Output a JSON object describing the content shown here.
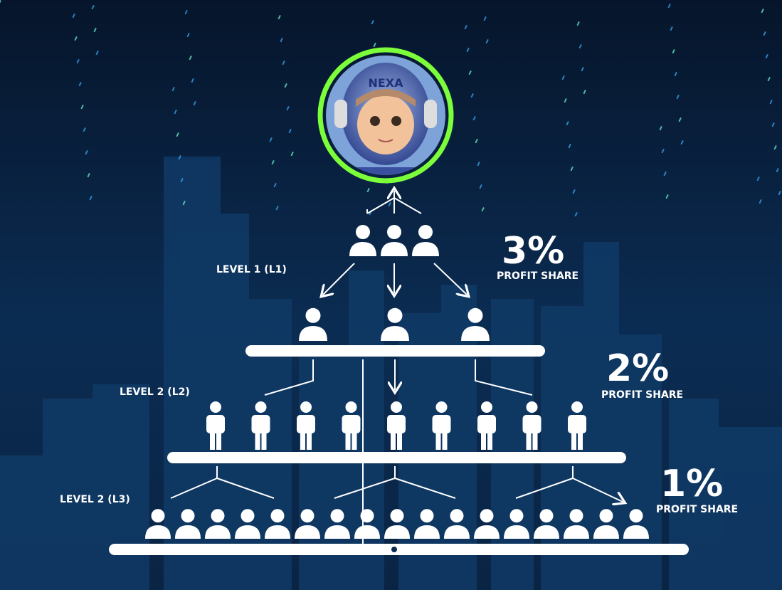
{
  "avatar": {
    "label": "NEXA"
  },
  "levels": [
    {
      "label": "LEVEL 1 (L1)",
      "share": "3%",
      "caption": "PROFIT SHARE"
    },
    {
      "label": "LEVEL 2 (L2)",
      "share": "2%",
      "caption": "PROFIT SHARE"
    },
    {
      "label": "LEVEL 2 (L3)",
      "share": "1%",
      "caption": "PROFIT SHARE"
    }
  ]
}
